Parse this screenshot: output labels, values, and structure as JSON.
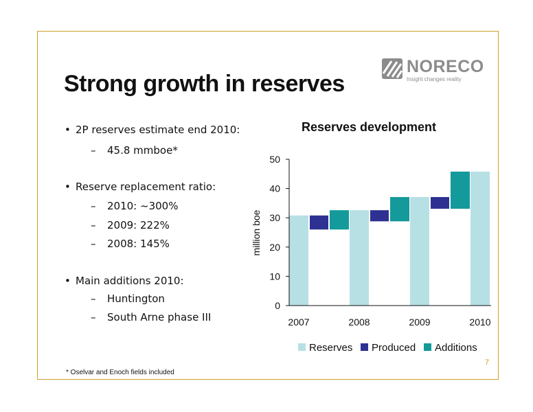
{
  "slide": {
    "title": "Strong growth in reserves",
    "page_number": "7",
    "footnote": "* Oselvar and Enoch fields included"
  },
  "logo": {
    "name": "NORECO",
    "tagline": "Insight changes reality",
    "icon": "noreco-stripes-icon"
  },
  "bullets": [
    {
      "level": 1,
      "text": "2P reserves estimate end 2010:"
    },
    {
      "level": 2,
      "text": "45.8 mmboe*"
    },
    {
      "level": 1,
      "text": "Reserve replacement ratio:"
    },
    {
      "level": 2,
      "text": "2010: ~300%"
    },
    {
      "level": 2,
      "text": "2009: 222%"
    },
    {
      "level": 2,
      "text": "2008: 145%"
    },
    {
      "level": 1,
      "text": "Main additions 2010:"
    },
    {
      "level": 2,
      "text": "Huntington"
    },
    {
      "level": 2,
      "text": "South Arne phase III"
    }
  ],
  "bullet_symbols": {
    "level1": "•",
    "level2": "–"
  },
  "chart_data": {
    "type": "bar",
    "subtype": "waterfall",
    "title": "Reserves development",
    "xlabel": "",
    "ylabel": "million boe",
    "ylim": [
      0,
      50
    ],
    "yticks": [
      0,
      10,
      20,
      30,
      40,
      50
    ],
    "categories": [
      "2007",
      "2008",
      "2009",
      "2010"
    ],
    "grid": false,
    "legend_position": "bottom",
    "series": [
      {
        "name": "Reserves",
        "color": "#b7e0e4",
        "values": [
          30.8,
          32.6,
          37.1,
          45.8
        ]
      },
      {
        "name": "Produced",
        "color": "#2e3192",
        "bars": [
          {
            "after": "2007",
            "from": 26.0,
            "to": 30.8
          },
          {
            "after": "2008",
            "from": 28.8,
            "to": 32.6
          },
          {
            "after": "2009",
            "from": 33.1,
            "to": 37.1
          }
        ]
      },
      {
        "name": "Additions",
        "color": "#149a9a",
        "bars": [
          {
            "after": "2007",
            "from": 26.0,
            "to": 32.6
          },
          {
            "after": "2008",
            "from": 28.8,
            "to": 37.1
          },
          {
            "after": "2009",
            "from": 33.1,
            "to": 45.8
          }
        ]
      }
    ]
  }
}
